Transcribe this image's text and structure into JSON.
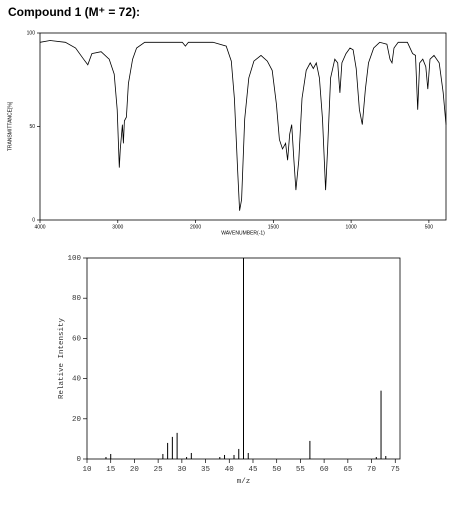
{
  "title": "Compound 1 (M⁺ = 72):",
  "chart_data": [
    {
      "type": "line",
      "x_label": "WAVENUMBER(-1)",
      "y_label": "TRANSMITTANCE[%]",
      "color": "#000000",
      "x": [
        4000,
        3870,
        3673,
        3542,
        3440,
        3385,
        3333,
        3215,
        3110,
        3046,
        3007,
        2980,
        2967,
        2941,
        2928,
        2915,
        2889,
        2863,
        2810,
        2758,
        2654,
        2366,
        2170,
        2130,
        2092,
        2000,
        1888,
        1803,
        1770,
        1750,
        1730,
        1717,
        1704,
        1684,
        1658,
        1625,
        1579,
        1539,
        1507,
        1480,
        1461,
        1441,
        1421,
        1408,
        1395,
        1382,
        1368,
        1355,
        1336,
        1316,
        1289,
        1263,
        1243,
        1224,
        1204,
        1184,
        1164,
        1151,
        1132,
        1105,
        1086,
        1072,
        1059,
        1033,
        1007,
        987,
        967,
        947,
        928,
        908,
        888,
        855,
        816,
        770,
        750,
        737,
        724,
        697,
        638,
        605,
        586,
        572,
        559,
        539,
        520,
        507,
        493,
        467,
        434,
        408,
        390
      ],
      "values": [
        95,
        96,
        95,
        92,
        86,
        83,
        89,
        90,
        86,
        78,
        59,
        28,
        38,
        51,
        41,
        53,
        55,
        73,
        86,
        92,
        95,
        95,
        95,
        93,
        95,
        95,
        95,
        93,
        85,
        65,
        27,
        5,
        11,
        54,
        76,
        85,
        88,
        85,
        80,
        62,
        43,
        38,
        41,
        32,
        46,
        51,
        32,
        16,
        32,
        65,
        80,
        84,
        81,
        84,
        76,
        54,
        16,
        38,
        76,
        86,
        84,
        68,
        84,
        89,
        92,
        91,
        81,
        59,
        51,
        70,
        84,
        92,
        95,
        94,
        86,
        84,
        92,
        95,
        95,
        89,
        88,
        59,
        84,
        86,
        82,
        70,
        86,
        88,
        84,
        68,
        51
      ],
      "xlim": [
        4000,
        390
      ],
      "ylim": [
        0,
        100
      ],
      "xticks": [
        4000,
        3000,
        2000,
        1500,
        1000,
        500
      ],
      "yticks": [
        0,
        50,
        100
      ]
    },
    {
      "type": "stem",
      "x_label": "m/z",
      "y_label": "Relative Intensity",
      "color": "#000000",
      "x": [
        14,
        15,
        26,
        27,
        28,
        29,
        31,
        32,
        38,
        39,
        41,
        42,
        43,
        44,
        57,
        71,
        72,
        73
      ],
      "values": [
        1,
        2.5,
        2.5,
        8,
        11,
        13,
        1,
        3,
        1,
        2,
        2,
        5,
        100,
        3,
        9,
        1,
        34,
        1.5
      ],
      "xlim": [
        10,
        76
      ],
      "ylim": [
        0,
        100
      ],
      "xticks": [
        10,
        15,
        20,
        25,
        30,
        35,
        40,
        45,
        50,
        55,
        60,
        65,
        70,
        75
      ],
      "yticks": [
        0,
        20,
        40,
        60,
        80,
        100
      ]
    }
  ]
}
